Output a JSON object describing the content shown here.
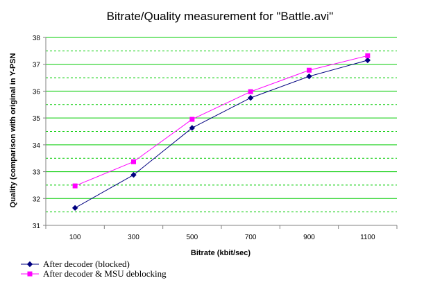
{
  "chart_data": {
    "type": "line",
    "title": "Bitrate/Quality measurement for \"Battle.avi\"",
    "xlabel": "Bitrate (kbit/sec)",
    "ylabel": "Quality (comparison with original in Y-PSN",
    "categories": [
      "100",
      "300",
      "500",
      "700",
      "900",
      "1100"
    ],
    "ylim": [
      31,
      38
    ],
    "y_major_ticks": [
      31,
      32,
      33,
      34,
      35,
      36,
      37,
      38
    ],
    "grid": {
      "major": true,
      "minor": true,
      "major_color": "#00cc00",
      "minor_color": "#00cc00"
    },
    "legend_position": "bottom-left",
    "series": [
      {
        "name": "After decoder (blocked)",
        "color": "#000080",
        "marker": "diamond",
        "values": [
          31.65,
          32.88,
          34.63,
          35.75,
          36.55,
          37.15
        ]
      },
      {
        "name": "After decoder & MSU deblocking",
        "color": "#ff00ff",
        "marker": "square",
        "values": [
          32.47,
          33.37,
          34.95,
          35.98,
          36.78,
          37.32
        ]
      }
    ]
  }
}
